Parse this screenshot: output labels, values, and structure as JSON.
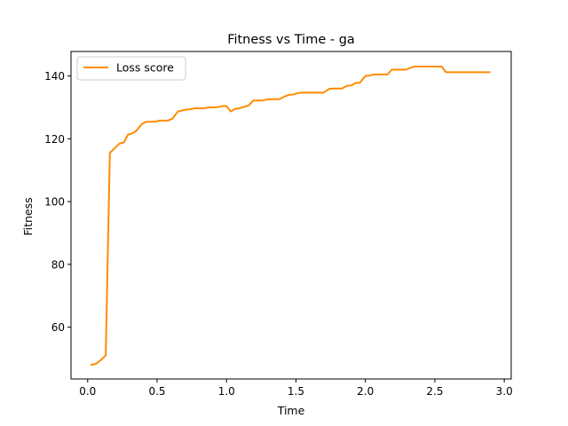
{
  "chart_data": {
    "type": "line",
    "title": "Fitness vs Time - ga",
    "xlabel": "Time",
    "ylabel": "Fitness",
    "xlim": [
      -0.12,
      3.05
    ],
    "ylim": [
      43.5,
      147.8
    ],
    "xticks": [
      0.0,
      0.5,
      1.0,
      1.5,
      2.0,
      2.5,
      3.0
    ],
    "xtick_labels": [
      "0.0",
      "0.5",
      "1.0",
      "1.5",
      "2.0",
      "2.5",
      "3.0"
    ],
    "yticks": [
      60,
      80,
      100,
      120,
      140
    ],
    "ytick_labels": [
      "60",
      "80",
      "100",
      "120",
      "140"
    ],
    "grid": false,
    "legend": {
      "position": "top-left"
    },
    "series": [
      {
        "name": "Loss score",
        "color": "#ff8c00",
        "x": [
          0.02,
          0.06,
          0.1,
          0.13,
          0.16,
          0.19,
          0.23,
          0.26,
          0.29,
          0.32,
          0.35,
          0.39,
          0.42,
          0.45,
          0.49,
          0.52,
          0.55,
          0.58,
          0.61,
          0.65,
          0.68,
          0.71,
          0.74,
          0.77,
          0.81,
          0.84,
          0.87,
          0.9,
          0.94,
          0.97,
          1.0,
          1.03,
          1.06,
          1.09,
          1.13,
          1.16,
          1.19,
          1.22,
          1.26,
          1.29,
          1.32,
          1.35,
          1.38,
          1.42,
          1.45,
          1.48,
          1.51,
          1.54,
          1.58,
          1.61,
          1.64,
          1.67,
          1.7,
          1.74,
          1.77,
          1.8,
          1.83,
          1.87,
          1.9,
          1.93,
          1.96,
          2.0,
          2.03,
          2.06,
          2.09,
          2.13,
          2.16,
          2.19,
          2.22,
          2.26,
          2.29,
          2.32,
          2.35,
          2.38,
          2.42,
          2.45,
          2.48,
          2.51,
          2.55,
          2.58,
          2.61,
          2.64,
          2.67,
          2.71,
          2.74,
          2.77,
          2.8,
          2.84,
          2.87,
          2.9
        ],
        "y": [
          48.0,
          48.3,
          49.7,
          51.0,
          115.5,
          116.8,
          118.5,
          118.8,
          121.3,
          121.7,
          122.5,
          124.7,
          125.4,
          125.4,
          125.5,
          125.8,
          125.8,
          125.8,
          126.4,
          128.7,
          129.0,
          129.3,
          129.4,
          129.7,
          129.7,
          129.7,
          130.0,
          130.0,
          130.1,
          130.4,
          130.4,
          128.7,
          129.5,
          129.7,
          130.2,
          130.6,
          132.1,
          132.2,
          132.2,
          132.5,
          132.6,
          132.6,
          132.6,
          133.5,
          134.0,
          134.1,
          134.5,
          134.7,
          134.7,
          134.7,
          134.7,
          134.7,
          134.7,
          135.9,
          136.0,
          136.0,
          136.0,
          136.9,
          137.0,
          137.8,
          137.8,
          140.0,
          140.1,
          140.5,
          140.5,
          140.5,
          140.5,
          142.0,
          142.0,
          142.0,
          142.0,
          142.5,
          143.0,
          143.0,
          143.0,
          143.0,
          143.0,
          143.0,
          143.0,
          141.2,
          141.2,
          141.2,
          141.2,
          141.2,
          141.2,
          141.2,
          141.2,
          141.2,
          141.2,
          141.2
        ]
      }
    ]
  }
}
